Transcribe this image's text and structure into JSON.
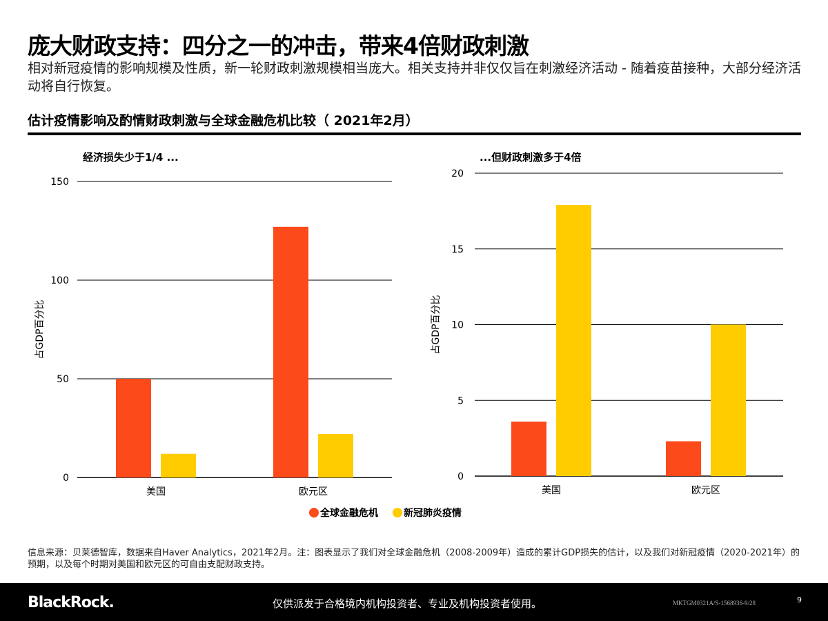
{
  "header": {
    "title": "庞大财政支持：四分之一的冲击，带来4倍财政刺激",
    "subtitle": "相对新冠疫情的影响规模及性质，新一轮财政刺激规模相当庞大。相关支持并非仅仅旨在刺激经济活动 - 随着疫苗接种，大部分经济活动将自行恢复。",
    "chart_title": "估计疫情影响及酌情财政刺激与全球金融危机比较（ 2021年2月）"
  },
  "colors": {
    "gfc": "#fc4a1a",
    "covid": "#ffcc00"
  },
  "chart_data": [
    {
      "type": "bar",
      "title": "经济损失少于1/4 ...",
      "ylabel": "占GDP百分比",
      "ylim": [
        0,
        150
      ],
      "yticks": [
        0,
        50,
        100,
        150
      ],
      "grid": true,
      "categories": [
        "美国",
        "欧元区"
      ],
      "series": [
        {
          "name": "全球金融危机",
          "values": [
            50,
            127
          ]
        },
        {
          "name": "新冠肺炎疫情",
          "values": [
            12,
            22
          ]
        }
      ]
    },
    {
      "type": "bar",
      "title": "...但财政刺激多于4倍",
      "ylabel": "占GDP百分比",
      "ylim": [
        0,
        20
      ],
      "yticks": [
        0,
        5,
        10,
        15,
        20
      ],
      "grid": true,
      "categories": [
        "美国",
        "欧元区"
      ],
      "series": [
        {
          "name": "全球金融危机",
          "values": [
            3.6,
            2.3
          ]
        },
        {
          "name": "新冠肺炎疫情",
          "values": [
            17.9,
            10.0
          ]
        }
      ]
    }
  ],
  "legend": {
    "placement": "bottom-center",
    "items": [
      "全球金融危机",
      "新冠肺炎疫情"
    ]
  },
  "source": "信息来源：贝莱德智库，数据来自Haver Analytics，2021年2月。注：图表显示了我们对全球金融危机（2008-2009年）造成的累计GDP损失的估计，以及我们对新冠疫情（2020-2021年）的预期，以及每个时期对美国和欧元区的可自由支配财政支持。",
  "footer": {
    "logo": "BlackRock.",
    "disclaimer": "仅供派发于合格境内机构投资者、专业及机构投资者使用。",
    "code": "MKTGM0321A/S-1568936-9/28",
    "page": "9"
  }
}
